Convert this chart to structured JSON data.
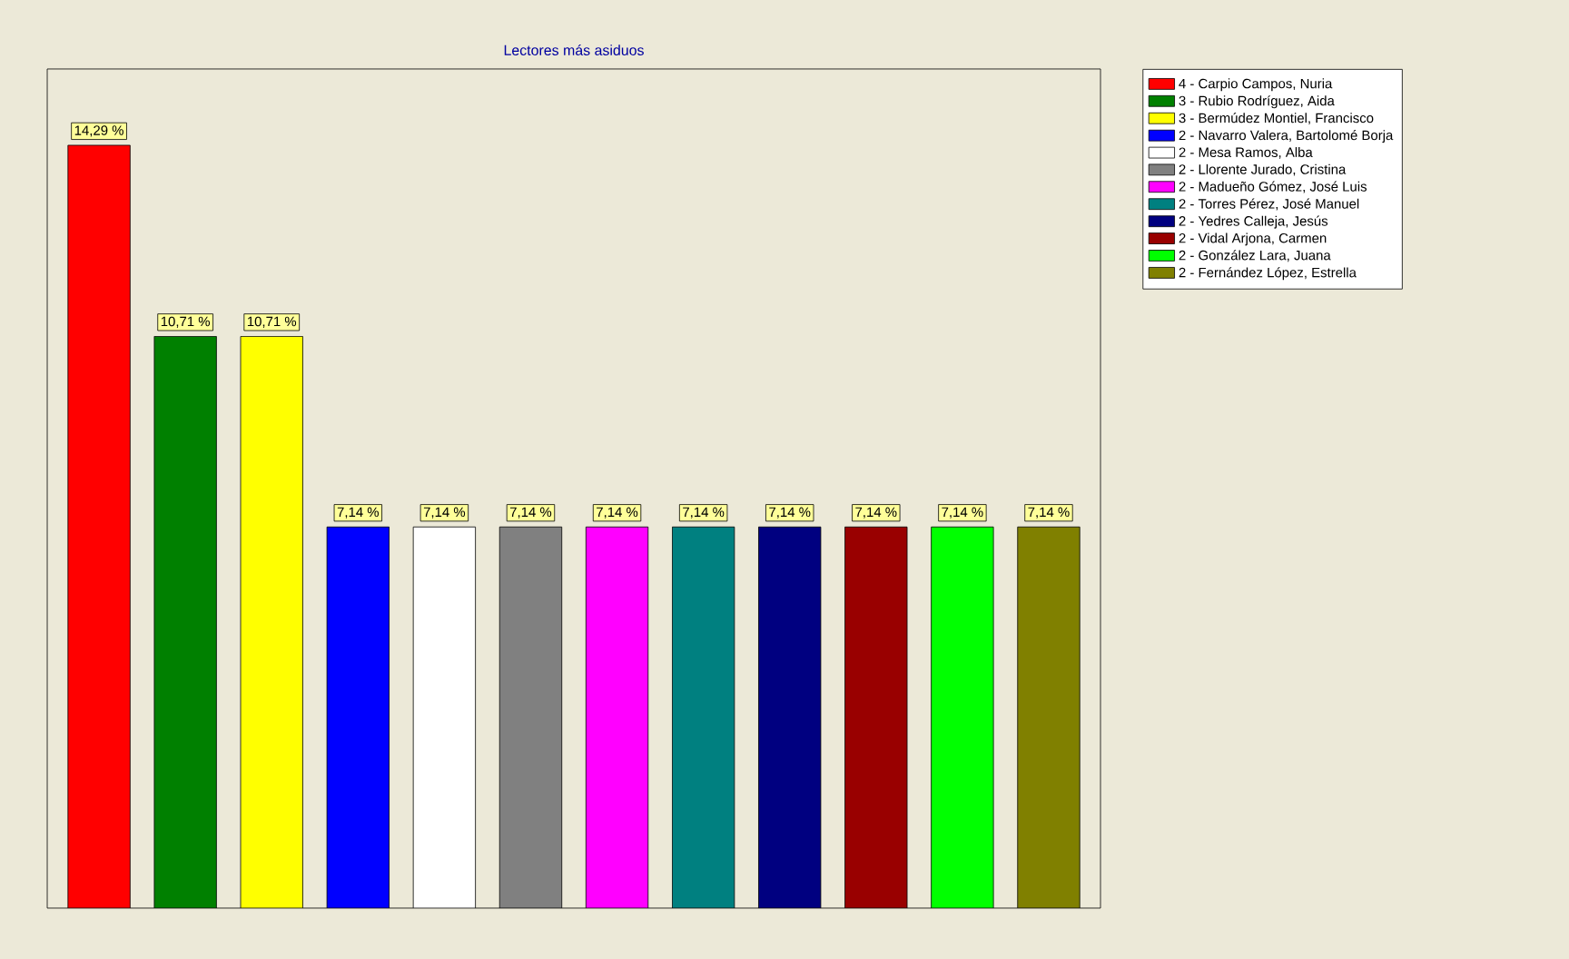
{
  "chart_data": {
    "type": "bar",
    "title": "Lectores más asiduos",
    "categories": [
      null,
      null,
      null,
      null,
      null,
      null,
      null,
      null,
      null,
      null,
      null,
      null
    ],
    "legend": "right",
    "stacked": true,
    "series": [
      {
        "name": "4  - Carpio Campos, Nuria",
        "color": "#ff0000",
        "values": [
          14.29,
          null,
          null,
          null,
          null,
          null,
          null,
          null,
          null,
          null,
          null,
          null
        ],
        "value_labels": [
          "14,29 %",
          null,
          null,
          null,
          null,
          null,
          null,
          null,
          null,
          null,
          null,
          null
        ]
      },
      {
        "name": "3  - Rubio Rodríguez, Aida",
        "color": "#008000",
        "values": [
          null,
          10.71,
          null,
          null,
          null,
          null,
          null,
          null,
          null,
          null,
          null,
          null
        ],
        "value_labels": [
          null,
          "10,71 %",
          null,
          null,
          null,
          null,
          null,
          null,
          null,
          null,
          null,
          null
        ]
      },
      {
        "name": "3  - Bermúdez Montiel, Francisco",
        "color": "#ffff00",
        "values": [
          null,
          null,
          10.71,
          null,
          null,
          null,
          null,
          null,
          null,
          null,
          null,
          null
        ],
        "value_labels": [
          null,
          null,
          "10,71 %",
          null,
          null,
          null,
          null,
          null,
          null,
          null,
          null,
          null
        ]
      },
      {
        "name": "2  - Navarro Valera, Bartolomé Borja",
        "color": "#0000ff",
        "values": [
          null,
          null,
          null,
          7.14,
          null,
          null,
          null,
          null,
          null,
          null,
          null,
          null
        ],
        "value_labels": [
          null,
          null,
          null,
          "7,14 %",
          null,
          null,
          null,
          null,
          null,
          null,
          null,
          null
        ]
      },
      {
        "name": "2  - Mesa Ramos, Alba",
        "color": "#ffffff",
        "values": [
          null,
          null,
          null,
          null,
          7.14,
          null,
          null,
          null,
          null,
          null,
          null,
          null
        ],
        "value_labels": [
          null,
          null,
          null,
          null,
          "7,14 %",
          null,
          null,
          null,
          null,
          null,
          null,
          null
        ]
      },
      {
        "name": "2  - Llorente Jurado, Cristina",
        "color": "#808080",
        "values": [
          null,
          null,
          null,
          null,
          null,
          7.14,
          null,
          null,
          null,
          null,
          null,
          null
        ],
        "value_labels": [
          null,
          null,
          null,
          null,
          null,
          "7,14 %",
          null,
          null,
          null,
          null,
          null,
          null
        ]
      },
      {
        "name": "2  - Madueño Gómez, José Luis",
        "color": "#ff00ff",
        "values": [
          null,
          null,
          null,
          null,
          null,
          null,
          7.14,
          null,
          null,
          null,
          null,
          null
        ],
        "value_labels": [
          null,
          null,
          null,
          null,
          null,
          null,
          "7,14 %",
          null,
          null,
          null,
          null,
          null
        ]
      },
      {
        "name": "2  - Torres Pérez, José Manuel",
        "color": "#008080",
        "values": [
          null,
          null,
          null,
          null,
          null,
          null,
          null,
          7.14,
          null,
          null,
          null,
          null
        ],
        "value_labels": [
          null,
          null,
          null,
          null,
          null,
          null,
          null,
          "7,14 %",
          null,
          null,
          null,
          null
        ]
      },
      {
        "name": "2  - Yedres Calleja, Jesús",
        "color": "#000080",
        "values": [
          null,
          null,
          null,
          null,
          null,
          null,
          null,
          null,
          7.14,
          null,
          null,
          null
        ],
        "value_labels": [
          null,
          null,
          null,
          null,
          null,
          null,
          null,
          null,
          "7,14 %",
          null,
          null,
          null
        ]
      },
      {
        "name": "2  - Vidal Arjona, Carmen",
        "color": "#990000",
        "values": [
          null,
          null,
          null,
          null,
          null,
          null,
          null,
          null,
          null,
          7.14,
          null,
          null
        ],
        "value_labels": [
          null,
          null,
          null,
          null,
          null,
          null,
          null,
          null,
          null,
          "7,14 %",
          null,
          null
        ]
      },
      {
        "name": "2  - González Lara, Juana",
        "color": "#00ff00",
        "values": [
          null,
          null,
          null,
          null,
          null,
          null,
          null,
          null,
          null,
          null,
          7.14,
          null
        ],
        "value_labels": [
          null,
          null,
          null,
          null,
          null,
          null,
          null,
          null,
          null,
          null,
          "7,14 %",
          null
        ]
      },
      {
        "name": "2  - Fernández López, Estrella",
        "color": "#808000",
        "values": [
          null,
          null,
          null,
          null,
          null,
          null,
          null,
          null,
          null,
          null,
          null,
          7.14
        ],
        "value_labels": [
          null,
          null,
          null,
          null,
          null,
          null,
          null,
          null,
          null,
          null,
          null,
          "7,14 %"
        ]
      }
    ]
  }
}
